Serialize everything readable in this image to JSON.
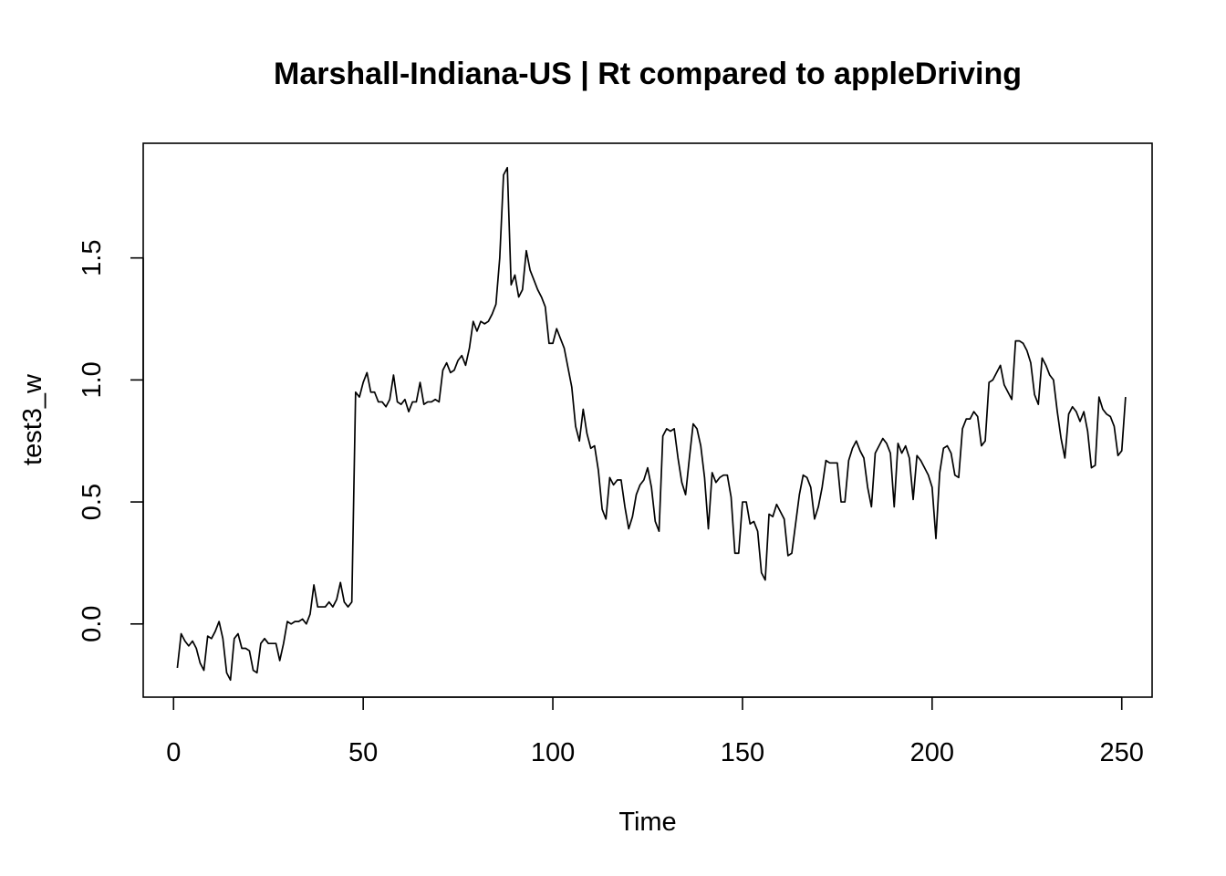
{
  "chart_data": {
    "type": "line",
    "title": "Marshall-Indiana-US | Rt compared to appleDriving",
    "xlabel": "Time",
    "ylabel": "test3_w",
    "xlim": [
      -8,
      258
    ],
    "ylim": [
      -0.3,
      1.97
    ],
    "xticks": [
      0,
      50,
      100,
      150,
      200,
      250
    ],
    "yticks": [
      0.0,
      0.5,
      1.0,
      1.5
    ],
    "xtick_labels": [
      "0",
      "50",
      "100",
      "150",
      "200",
      "250"
    ],
    "ytick_labels": [
      "0.0",
      "0.5",
      "1.0",
      "1.5"
    ],
    "grid": false,
    "series": [
      {
        "x_start": 1,
        "values": [
          -0.18,
          -0.04,
          -0.07,
          -0.09,
          -0.07,
          -0.1,
          -0.16,
          -0.19,
          -0.05,
          -0.06,
          -0.03,
          0.01,
          -0.06,
          -0.2,
          -0.23,
          -0.06,
          -0.04,
          -0.1,
          -0.1,
          -0.11,
          -0.19,
          -0.2,
          -0.08,
          -0.06,
          -0.08,
          -0.08,
          -0.08,
          -0.15,
          -0.08,
          0.01,
          0.0,
          0.01,
          0.01,
          0.02,
          0.0,
          0.04,
          0.16,
          0.07,
          0.07,
          0.07,
          0.09,
          0.07,
          0.1,
          0.17,
          0.09,
          0.07,
          0.09,
          0.95,
          0.93,
          0.99,
          1.03,
          0.95,
          0.95,
          0.91,
          0.91,
          0.89,
          0.92,
          1.02,
          0.91,
          0.9,
          0.92,
          0.87,
          0.91,
          0.91,
          0.99,
          0.9,
          0.91,
          0.91,
          0.92,
          0.91,
          1.04,
          1.07,
          1.03,
          1.04,
          1.08,
          1.1,
          1.06,
          1.13,
          1.24,
          1.2,
          1.24,
          1.23,
          1.24,
          1.27,
          1.31,
          1.5,
          1.84,
          1.87,
          1.39,
          1.43,
          1.34,
          1.37,
          1.53,
          1.45,
          1.41,
          1.37,
          1.34,
          1.3,
          1.15,
          1.15,
          1.21,
          1.17,
          1.13,
          1.05,
          0.97,
          0.81,
          0.75,
          0.88,
          0.78,
          0.72,
          0.73,
          0.63,
          0.47,
          0.43,
          0.6,
          0.57,
          0.59,
          0.59,
          0.48,
          0.39,
          0.44,
          0.53,
          0.57,
          0.59,
          0.64,
          0.56,
          0.42,
          0.38,
          0.77,
          0.8,
          0.79,
          0.8,
          0.68,
          0.58,
          0.53,
          0.68,
          0.82,
          0.8,
          0.73,
          0.6,
          0.39,
          0.62,
          0.58,
          0.6,
          0.61,
          0.61,
          0.52,
          0.29,
          0.29,
          0.5,
          0.5,
          0.41,
          0.42,
          0.38,
          0.21,
          0.18,
          0.45,
          0.44,
          0.49,
          0.46,
          0.43,
          0.28,
          0.29,
          0.41,
          0.53,
          0.61,
          0.6,
          0.56,
          0.43,
          0.48,
          0.56,
          0.67,
          0.66,
          0.66,
          0.66,
          0.5,
          0.5,
          0.67,
          0.72,
          0.75,
          0.71,
          0.68,
          0.56,
          0.48,
          0.7,
          0.73,
          0.76,
          0.74,
          0.7,
          0.48,
          0.74,
          0.7,
          0.73,
          0.68,
          0.51,
          0.69,
          0.67,
          0.64,
          0.61,
          0.56,
          0.35,
          0.62,
          0.72,
          0.73,
          0.7,
          0.61,
          0.6,
          0.8,
          0.84,
          0.84,
          0.87,
          0.85,
          0.73,
          0.75,
          0.99,
          1.0,
          1.03,
          1.06,
          0.98,
          0.95,
          0.92,
          1.16,
          1.16,
          1.15,
          1.12,
          1.07,
          0.94,
          0.9,
          1.09,
          1.06,
          1.02,
          1.0,
          0.87,
          0.76,
          0.68,
          0.86,
          0.89,
          0.87,
          0.83,
          0.87,
          0.79,
          0.64,
          0.65,
          0.93,
          0.88,
          0.86,
          0.85,
          0.81,
          0.69,
          0.71,
          0.93
        ]
      }
    ]
  }
}
